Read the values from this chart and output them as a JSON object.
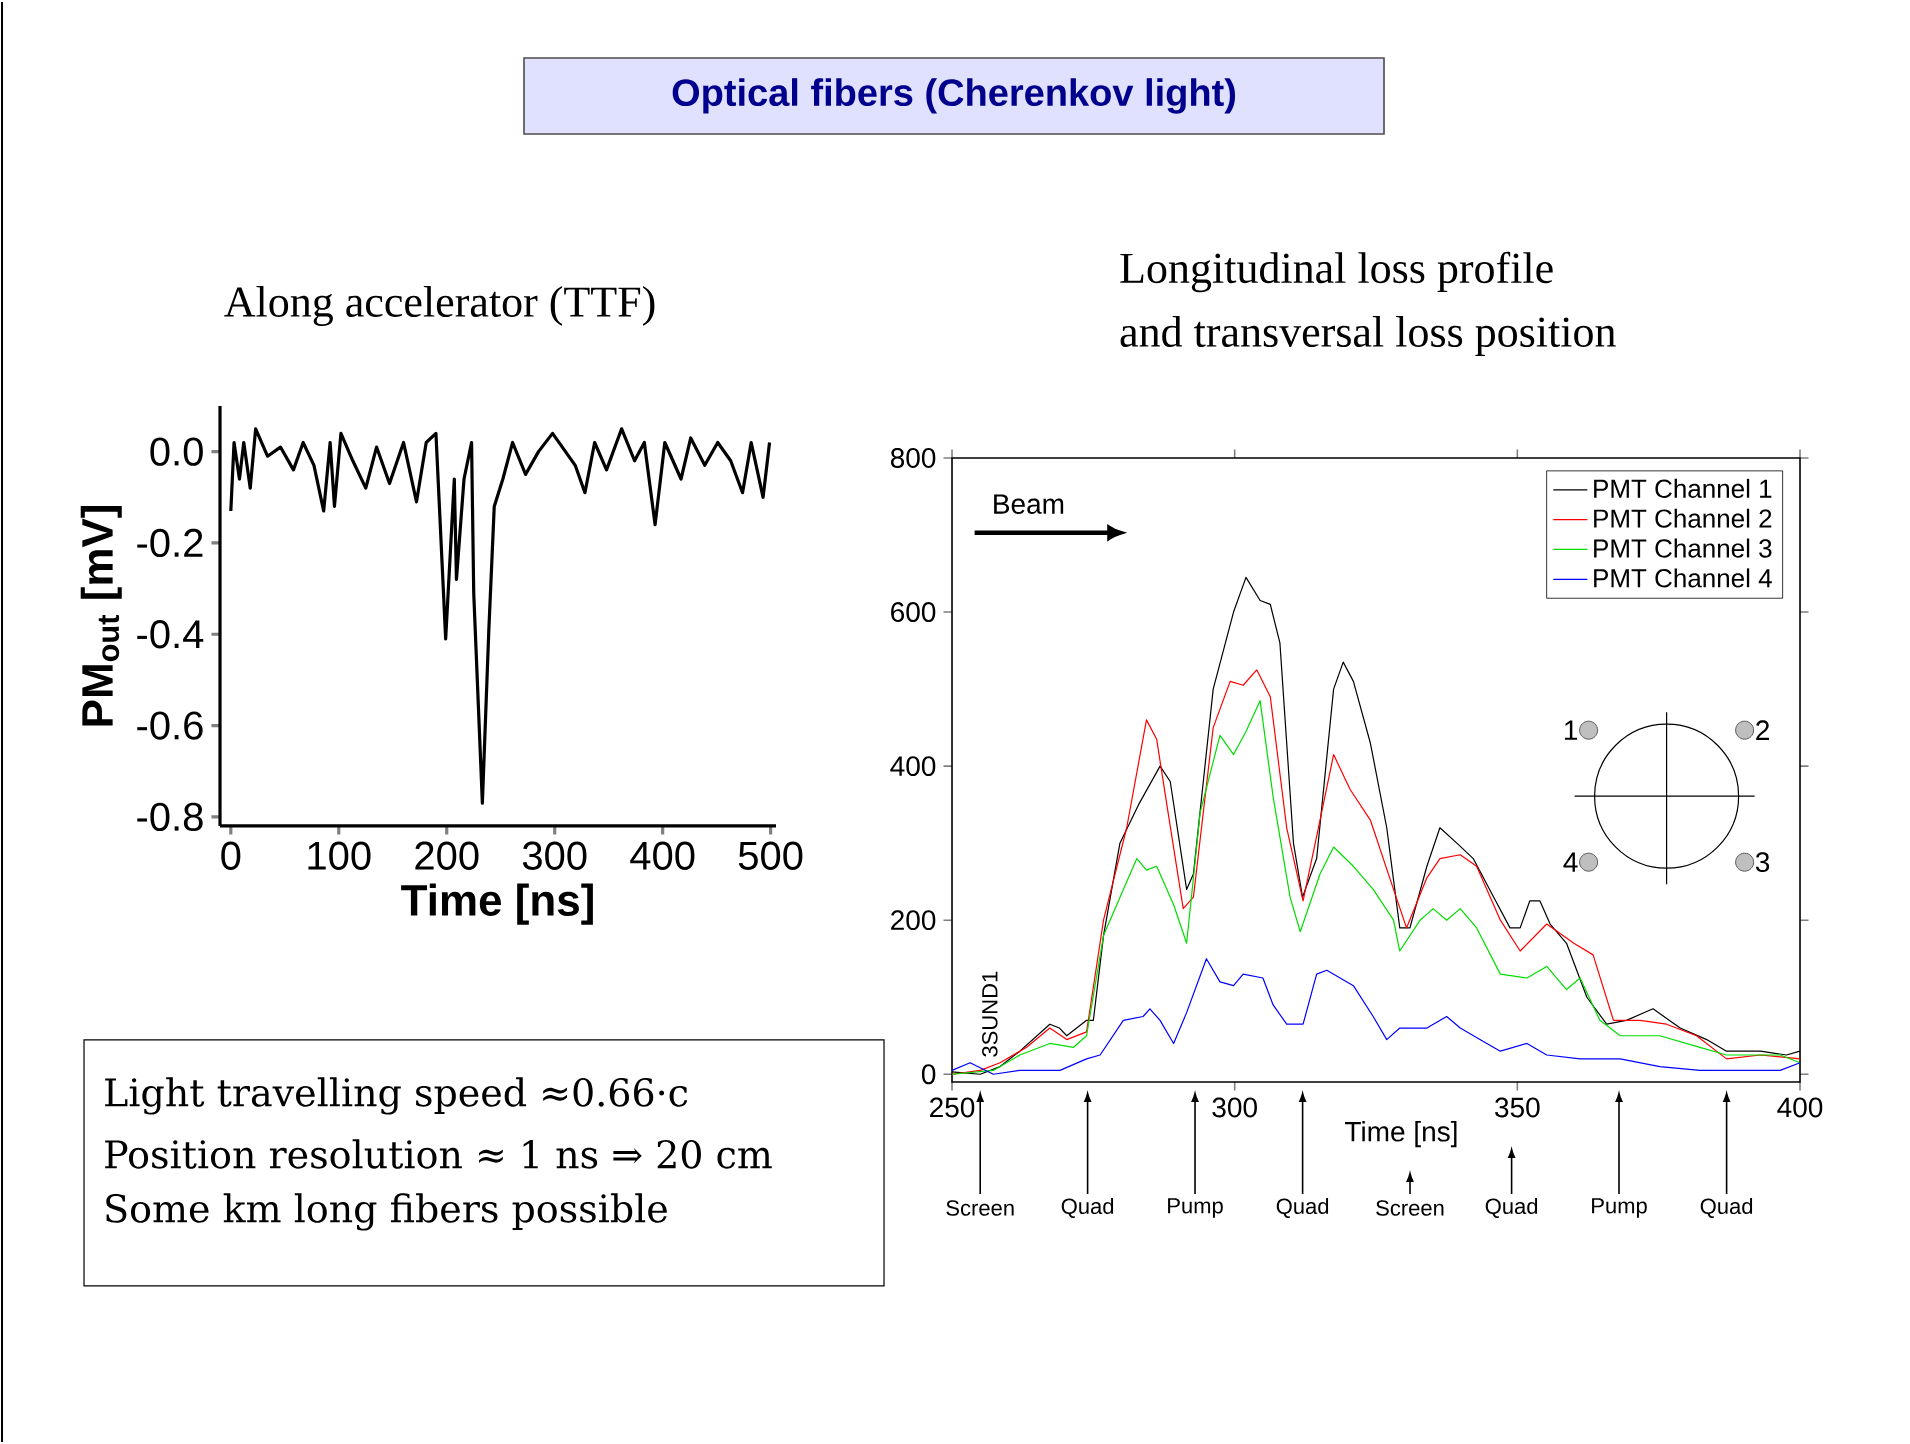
{
  "chart_data": [
    {
      "type": "line",
      "title": "Along accelerator (TTF)",
      "xlabel": "Time [ns]",
      "ylabel": "PM$_{out}$ [mV]",
      "xlim": [
        -10,
        505
      ],
      "ylim": [
        -0.82,
        0.1
      ],
      "xticks": [
        0,
        100,
        200,
        300,
        400,
        500
      ],
      "yticks": [
        {
          "value": 0,
          "label": "0.0"
        },
        {
          "value": -0.2,
          "label": "-0.2"
        },
        {
          "value": -0.4,
          "label": "-0.4"
        },
        {
          "value": -0.6,
          "label": "-0.6"
        },
        {
          "value": -0.8,
          "label": "-0.8"
        }
      ],
      "series": [
        {
          "color": "#000000",
          "x": [
            0,
            3,
            8,
            12,
            18,
            23,
            34,
            46,
            58,
            67,
            77,
            86,
            92,
            96,
            102,
            113,
            125,
            135,
            147,
            160,
            172,
            181,
            190,
            199,
            207,
            209,
            216,
            223,
            225,
            233,
            239,
            244,
            252,
            261,
            273,
            285,
            298,
            310,
            319,
            328,
            337,
            348,
            362,
            374,
            383,
            393,
            402,
            417,
            426,
            439,
            451,
            463,
            474,
            482,
            493,
            499
          ],
          "values": [
            -0.13,
            0.02,
            -0.06,
            0.02,
            -0.08,
            0.05,
            -0.01,
            0.01,
            -0.04,
            0.02,
            -0.03,
            -0.13,
            0.02,
            -0.12,
            0.04,
            -0.02,
            -0.08,
            0.01,
            -0.07,
            0.02,
            -0.11,
            0.02,
            0.04,
            -0.41,
            -0.06,
            -0.28,
            -0.06,
            0.02,
            -0.31,
            -0.77,
            -0.39,
            -0.12,
            -0.06,
            0.02,
            -0.05,
            0.0,
            0.04,
            0.0,
            -0.03,
            -0.09,
            0.02,
            -0.04,
            0.05,
            -0.02,
            0.02,
            -0.16,
            0.02,
            -0.06,
            0.03,
            -0.03,
            0.02,
            -0.02,
            -0.09,
            0.02,
            -0.1,
            0.02
          ]
        }
      ]
    },
    {
      "type": "line",
      "title": "Longitudinal loss profile",
      "subtitle": "and transversal loss position",
      "xlabel": "Time [ns]",
      "xlim": [
        250,
        400
      ],
      "ylim": [
        -10,
        800
      ],
      "xticks": [
        250,
        300,
        350,
        400
      ],
      "yticks": [
        0,
        200,
        400,
        600,
        800
      ],
      "legend": "top right",
      "annotations": [
        "Beam",
        "3SUND1",
        "1",
        "2",
        "3",
        "4",
        "Screen",
        "Quad",
        "Pump",
        "Quad",
        "Screen",
        "Quad",
        "Pump",
        "Quad"
      ],
      "series": [
        {
          "name": "PMT Channel 1",
          "color": "#000000",
          "x": [
            250,
            255,
            258.5,
            262,
            267.3,
            269,
            270.3,
            273.8,
            275,
            276.8,
            279.7,
            283,
            286.8,
            288.6,
            291.5,
            292.7,
            296.2,
            299.8,
            302,
            304.5,
            306.3,
            308,
            310.4,
            312,
            314.5,
            317.5,
            319.2,
            321,
            324,
            326.9,
            329.2,
            331,
            334,
            336.3,
            339.3,
            342.2,
            345.8,
            348.7,
            350.5,
            352.2,
            354,
            355.8,
            358.7,
            362.3,
            365.8,
            369.3,
            374,
            378.8,
            383.5,
            387,
            393,
            397.6,
            400
          ],
          "values": [
            3,
            0,
            10,
            30,
            65,
            60,
            50,
            70,
            70,
            180,
            300,
            350,
            400,
            380,
            240,
            260,
            500,
            600,
            645,
            615,
            610,
            560,
            300,
            230,
            280,
            500,
            535,
            510,
            430,
            320,
            190,
            190,
            270,
            320,
            300,
            280,
            230,
            190,
            190,
            225,
            225,
            195,
            170,
            100,
            65,
            70,
            85,
            60,
            45,
            30,
            30,
            25,
            30
          ]
        },
        {
          "name": "PMT Channel 2",
          "color": "#ff0000",
          "x": [
            250,
            255,
            258.5,
            263.2,
            267.3,
            270.3,
            273.8,
            276.8,
            280.9,
            284.4,
            286.2,
            288,
            290.9,
            292.7,
            296.2,
            299.2,
            301.5,
            303.9,
            306.3,
            309.2,
            312.1,
            315.1,
            317.5,
            320.4,
            324,
            328.1,
            330.4,
            334,
            336.3,
            339.9,
            342.8,
            347,
            350.5,
            355.2,
            360,
            363.4,
            367,
            371.7,
            376.4,
            381.7,
            387,
            393,
            400
          ],
          "values": [
            0,
            5,
            15,
            35,
            60,
            45,
            55,
            200,
            320,
            460,
            435,
            350,
            215,
            230,
            450,
            510,
            505,
            525,
            490,
            320,
            225,
            330,
            415,
            370,
            330,
            240,
            190,
            255,
            280,
            285,
            270,
            200,
            160,
            195,
            170,
            155,
            70,
            70,
            65,
            50,
            20,
            25,
            20
          ]
        },
        {
          "name": "PMT Channel 3",
          "color": "#00dd00",
          "x": [
            250,
            257.3,
            262,
            267.3,
            271.5,
            273.8,
            276.8,
            280.9,
            282.7,
            284.4,
            286.2,
            289.2,
            291.5,
            293.9,
            297.4,
            299.8,
            302,
            304.5,
            306.8,
            309.8,
            311.6,
            315.1,
            317.5,
            321,
            324.5,
            328.1,
            329.2,
            332.8,
            335.1,
            337.5,
            339.9,
            342.8,
            347,
            351.7,
            355.2,
            358.7,
            361.1,
            364.6,
            368.2,
            375.2,
            382.3,
            387,
            396.5,
            400
          ],
          "values": [
            0,
            5,
            25,
            40,
            35,
            50,
            180,
            250,
            280,
            265,
            270,
            220,
            170,
            340,
            440,
            415,
            445,
            485,
            360,
            230,
            185,
            260,
            295,
            270,
            240,
            200,
            160,
            200,
            215,
            200,
            215,
            190,
            130,
            125,
            140,
            110,
            125,
            70,
            50,
            50,
            35,
            25,
            25,
            15
          ]
        },
        {
          "name": "PMT Channel 4",
          "color": "#0000ff",
          "x": [
            250,
            253.2,
            257.3,
            262,
            269.1,
            273.8,
            276.2,
            280.3,
            283.8,
            285,
            286.8,
            289.2,
            291.5,
            295,
            297.4,
            299.8,
            301.5,
            305,
            306.8,
            309.2,
            312.1,
            314.5,
            316.3,
            321,
            324.5,
            326.9,
            329.2,
            334,
            337.5,
            339.9,
            344.6,
            347,
            351.7,
            355.2,
            361.1,
            368.2,
            375.2,
            382.3,
            390.6,
            396.5,
            400
          ],
          "values": [
            5,
            15,
            0,
            5,
            5,
            20,
            25,
            70,
            75,
            85,
            70,
            40,
            80,
            150,
            120,
            115,
            130,
            125,
            90,
            65,
            65,
            130,
            135,
            115,
            75,
            45,
            60,
            60,
            75,
            60,
            40,
            30,
            40,
            25,
            20,
            20,
            10,
            5,
            5,
            5,
            15
          ]
        }
      ]
    },
    {
      "type": "other",
      "title": "Optical fibers (Cherenkov light)",
      "annotations": [
        "Light travelling speed ≈0.66·c",
        "Position resolution ≈ 1 ns ⇒ 20 cm",
        "Some km long fibers possible"
      ]
    }
  ]
}
